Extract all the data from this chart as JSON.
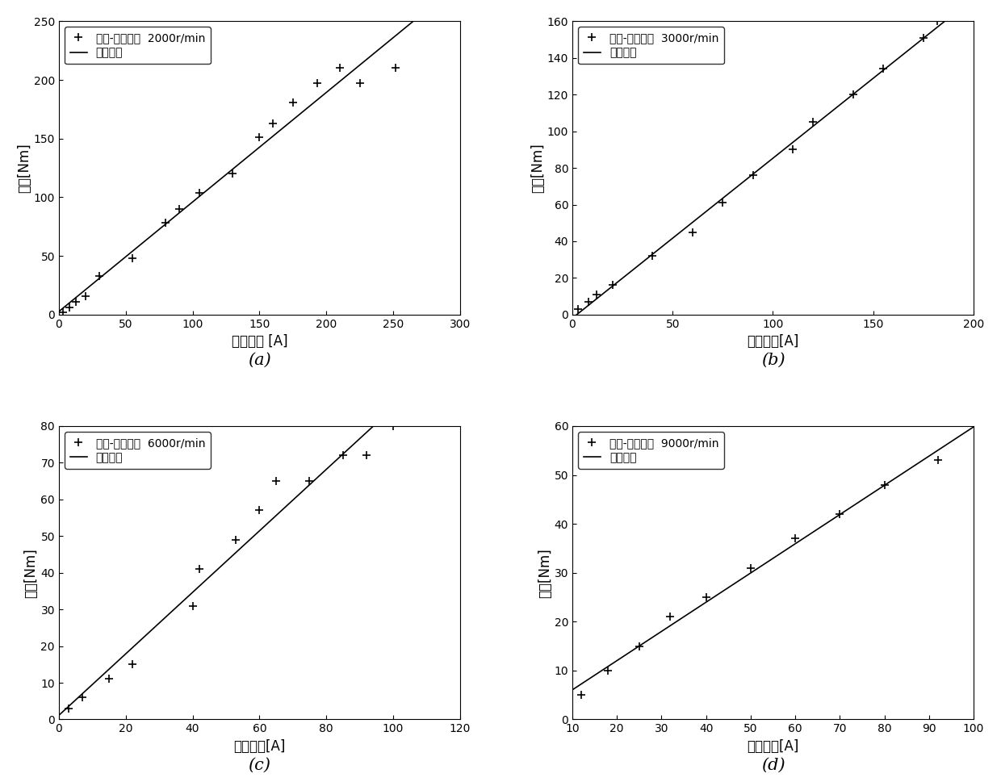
{
  "plots": [
    {
      "label": "(a)",
      "legend1": "转矩-电流幅値  2000r/min",
      "legend2": "线性拟合",
      "xlabel": "电流幅値 [A]",
      "ylabel": "转矩[Nm]",
      "xlim": [
        0,
        300
      ],
      "ylim": [
        0,
        250
      ],
      "xticks": [
        0,
        50,
        100,
        150,
        200,
        250,
        300
      ],
      "yticks": [
        0,
        50,
        100,
        150,
        200,
        250
      ],
      "data_x": [
        3,
        8,
        13,
        20,
        30,
        55,
        80,
        90,
        105,
        130,
        150,
        160,
        175,
        193,
        210,
        225,
        252
      ],
      "data_y": [
        2,
        6,
        11,
        16,
        33,
        48,
        78,
        90,
        104,
        120,
        151,
        163,
        181,
        197,
        210,
        197,
        210
      ],
      "fit_slope": 0.8333,
      "fit_intercept": 0
    },
    {
      "label": "(b)",
      "legend1": "转矩-电流幅値  3000r/min",
      "legend2": "线性拟合",
      "xlabel": "电流幅値[A]",
      "ylabel": "转矩[Nm]",
      "xlim": [
        0,
        200
      ],
      "ylim": [
        0,
        160
      ],
      "xticks": [
        0,
        50,
        100,
        150,
        200
      ],
      "yticks": [
        0,
        20,
        40,
        60,
        80,
        100,
        120,
        140,
        160
      ],
      "data_x": [
        3,
        8,
        12,
        20,
        40,
        60,
        75,
        90,
        110,
        120,
        140,
        155,
        175,
        182
      ],
      "data_y": [
        3,
        7,
        11,
        16,
        32,
        45,
        61,
        76,
        90,
        105,
        120,
        134,
        151,
        160
      ],
      "fit_slope": 0.8,
      "fit_intercept": 0
    },
    {
      "label": "(c)",
      "legend1": "转矩-电流幅値  6000r/min",
      "legend2": "线性拟合",
      "xlabel": "电流幅値[A]",
      "ylabel": "转矩[Nm]",
      "xlim": [
        0,
        120
      ],
      "ylim": [
        0,
        80
      ],
      "xticks": [
        0,
        20,
        40,
        60,
        80,
        100,
        120
      ],
      "yticks": [
        0,
        10,
        20,
        30,
        40,
        50,
        60,
        70,
        80
      ],
      "data_x": [
        3,
        7,
        15,
        22,
        40,
        42,
        53,
        60,
        65,
        75,
        85,
        92,
        100
      ],
      "data_y": [
        3,
        6,
        11,
        15,
        31,
        41,
        49,
        57,
        65,
        65,
        72,
        72,
        80
      ],
      "fit_slope": 0.7778,
      "fit_intercept": 0
    },
    {
      "label": "(d)",
      "legend1": "转矩-电流幅値  9000r/min",
      "legend2": "线性拟合",
      "xlabel": "电流幅値[A]",
      "ylabel": "转矩[Nm]",
      "xlim": [
        10,
        100
      ],
      "ylim": [
        0,
        60
      ],
      "xticks": [
        10,
        20,
        30,
        40,
        50,
        60,
        70,
        80,
        90,
        100
      ],
      "yticks": [
        0,
        10,
        20,
        30,
        40,
        50,
        60
      ],
      "data_x": [
        12,
        18,
        25,
        32,
        40,
        50,
        60,
        70,
        80,
        92
      ],
      "data_y": [
        5,
        10,
        15,
        21,
        25,
        31,
        37,
        42,
        48,
        53
      ],
      "fit_slope": 0.5909,
      "fit_intercept": -1.5
    }
  ]
}
